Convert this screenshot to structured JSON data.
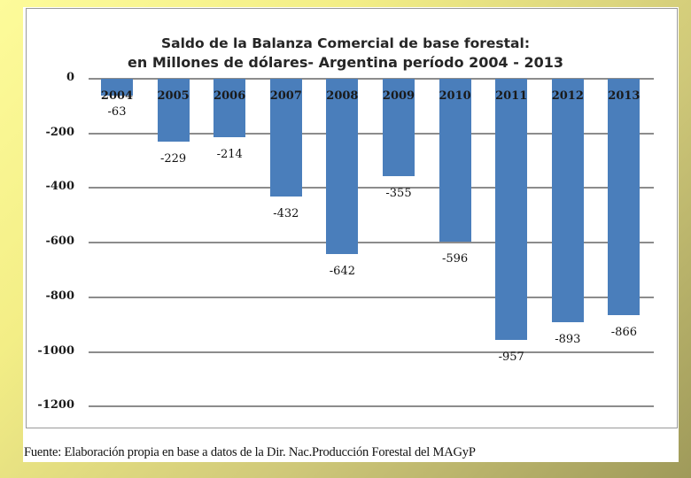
{
  "chart_data": {
    "type": "bar",
    "title": "Saldo de la Balanza Comercial de base forestal: en Millones de dólares- Argentina período 2004 - 2013",
    "title_lines": [
      "Saldo de la Balanza Comercial de base forestal:",
      "en Millones de dólares- Argentina período 2004 - 2013"
    ],
    "categories": [
      "2004",
      "2005",
      "2006",
      "2007",
      "2008",
      "2009",
      "2010",
      "2011",
      "2012",
      "2013"
    ],
    "values": [
      -63,
      -229,
      -214,
      -432,
      -642,
      -355,
      -596,
      -957,
      -893,
      -866
    ],
    "value_labels": [
      "-63",
      "-229",
      "-214",
      "-432",
      "-642",
      "-355",
      "-596",
      "-957",
      "-893",
      "-866"
    ],
    "xlabel": "",
    "ylabel": "",
    "ylim": [
      -1200,
      0
    ],
    "yticks": [
      0,
      -200,
      -400,
      -600,
      -800,
      -1000,
      -1200
    ],
    "ytick_labels": [
      "0",
      "-200",
      "-400",
      "-600",
      "-800",
      "-1000",
      "-1200"
    ],
    "grid": true,
    "legend": "none",
    "bar_color": "#4a7ebb"
  },
  "source": "Fuente: Elaboración propia en base a datos de la Dir. Nac.Producción Forestal del MAGyP"
}
